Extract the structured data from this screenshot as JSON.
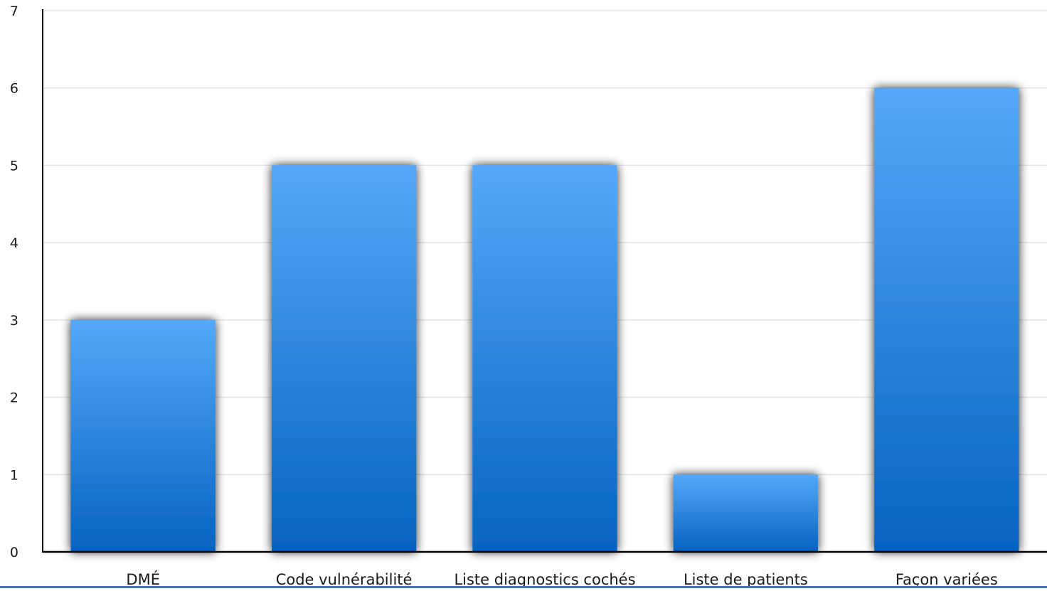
{
  "chart_data": {
    "type": "bar",
    "title": "",
    "xlabel": "",
    "ylabel": "",
    "categories": [
      "DMÉ",
      "Code vulnérabilité",
      "Liste diagnostics cochés",
      "Liste de patients",
      "Façon variées"
    ],
    "values": [
      3,
      5,
      5,
      1,
      6
    ],
    "ylim": [
      0,
      7
    ],
    "yticks": [
      0,
      1,
      2,
      3,
      4,
      5,
      6,
      7
    ],
    "grid": true,
    "legend": "none",
    "colors": {
      "bar_top": "#55a8f8",
      "bar_bottom": "#0563c1",
      "grid": "#e4e4e4",
      "axis": "#000000",
      "shadow": "#000000"
    }
  }
}
